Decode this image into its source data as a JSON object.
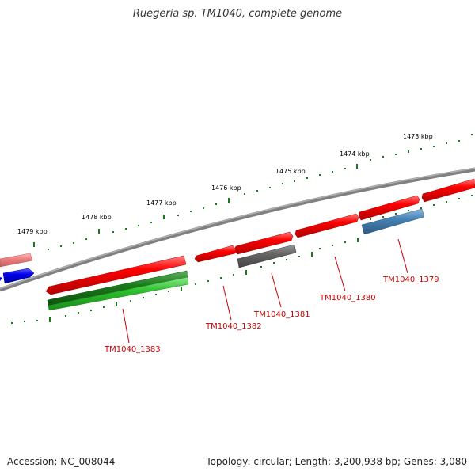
{
  "title": "Ruegeria sp. TM1040, complete genome",
  "footer": {
    "accession": "Accession: NC_008044",
    "topology": "Topology: circular; Length: 3,200,938 bp; Genes: 3,080"
  },
  "ticks": [
    {
      "label": "1473 kbp"
    },
    {
      "label": "1474 kbp"
    },
    {
      "label": "1475 kbp"
    },
    {
      "label": "1476 kbp"
    },
    {
      "label": "1477 kbp"
    },
    {
      "label": "1478 kbp"
    },
    {
      "label": "1479 kbp"
    }
  ],
  "genes": [
    {
      "label": "TM1040_1379"
    },
    {
      "label": "TM1040_1380"
    },
    {
      "label": "TM1040_1381"
    },
    {
      "label": "TM1040_1382"
    },
    {
      "label": "TM1040_1383"
    }
  ],
  "colors": {
    "red": "#ff0000",
    "pink": "#f08080",
    "blue": "#0000ee",
    "gray": "#666666",
    "steelblue": "#4682b4",
    "green": "#2aa02a",
    "darkgreen": "#1a7a1a",
    "backbone": "#808080",
    "tick": "#1a7a1a",
    "label": "#cc0000"
  }
}
